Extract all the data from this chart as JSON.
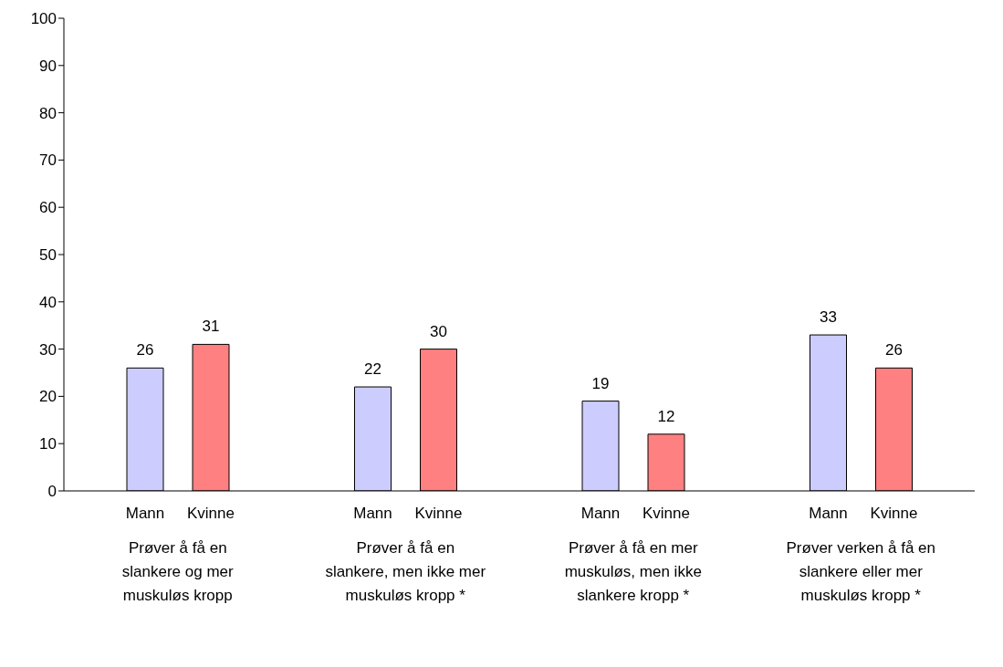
{
  "chart_data": {
    "type": "bar",
    "categories": [
      "Prøver å få en slankere og mer muskuløs kropp",
      "Prøver å få en slankere, men ikke mer muskuløs kropp *",
      "Prøver å få en mer muskuløs, men ikke slankere kropp *",
      "Prøver verken å få en slankere eller mer muskuløs kropp *"
    ],
    "series": [
      {
        "name": "Mann",
        "color": "#ccccff",
        "values": [
          26,
          22,
          19,
          33
        ]
      },
      {
        "name": "Kvinne",
        "color": "#ff8080",
        "values": [
          31,
          30,
          12,
          26
        ]
      }
    ],
    "ylim": [
      0,
      100
    ],
    "yticks": [
      0,
      10,
      20,
      30,
      40,
      50,
      60,
      70,
      80,
      90,
      100
    ],
    "grid": false,
    "legend": false,
    "data_labels": true
  }
}
